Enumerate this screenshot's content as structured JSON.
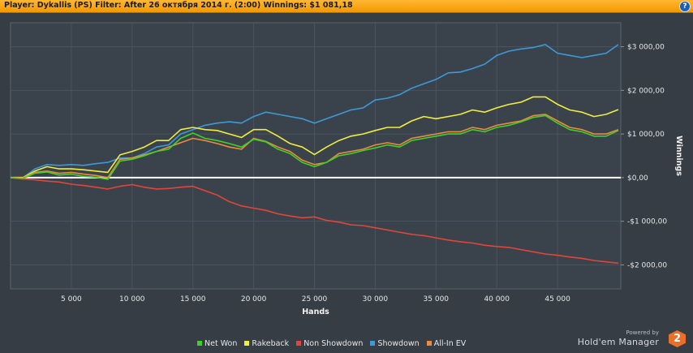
{
  "header": {
    "title": "Player: Dykallis (PS) Filter: After 26 октября 2014 г. (2:00) Winnings: $1 081,18",
    "help_icon": "question-mark-icon"
  },
  "branding": {
    "powered_by": "Powered by",
    "product": "Hold'em Manager",
    "badge": "2"
  },
  "chart_data": {
    "type": "line",
    "title": "",
    "xlabel": "Hands",
    "ylabel": "Winnings",
    "xlim": [
      0,
      50200
    ],
    "ylim": [
      -2550,
      3550
    ],
    "x_ticks": [
      5000,
      10000,
      15000,
      20000,
      25000,
      30000,
      35000,
      40000,
      45000
    ],
    "x_tick_labels": [
      "5 000",
      "10 000",
      "15 000",
      "20 000",
      "25 000",
      "30 000",
      "35 000",
      "40 000",
      "45 000"
    ],
    "y_ticks": [
      3000,
      2000,
      1000,
      0,
      -1000,
      -2000
    ],
    "y_tick_labels": [
      "$3 000,00",
      "$2 000,00",
      "$1 000,00",
      "$0,00",
      "-$1 000,00",
      "-$2 000,00"
    ],
    "y_axis_position": "right",
    "grid": true,
    "legend_position": "bottom",
    "x": [
      0,
      1000,
      2000,
      3000,
      4000,
      5000,
      6000,
      7000,
      8000,
      9000,
      10000,
      11000,
      12000,
      13000,
      14000,
      15000,
      16000,
      17000,
      18000,
      19000,
      20000,
      21000,
      22000,
      23000,
      24000,
      25000,
      26000,
      27000,
      28000,
      29000,
      30000,
      31000,
      32000,
      33000,
      34000,
      35000,
      36000,
      37000,
      38000,
      39000,
      40000,
      41000,
      42000,
      43000,
      44000,
      45000,
      46000,
      47000,
      48000,
      49000,
      50000
    ],
    "series": [
      {
        "name": "Net Won",
        "color": "#3ed12b",
        "values": [
          0,
          -20,
          100,
          130,
          60,
          80,
          30,
          10,
          -40,
          380,
          420,
          500,
          600,
          650,
          900,
          1020,
          900,
          850,
          780,
          700,
          880,
          820,
          650,
          550,
          350,
          250,
          350,
          500,
          550,
          620,
          680,
          750,
          700,
          850,
          900,
          950,
          1000,
          1000,
          1100,
          1050,
          1150,
          1200,
          1280,
          1380,
          1420,
          1250,
          1100,
          1050,
          950,
          950,
          1081
        ]
      },
      {
        "name": "Rakeback",
        "color": "#f1ee3d",
        "values": [
          0,
          0,
          150,
          250,
          200,
          200,
          180,
          150,
          120,
          520,
          600,
          700,
          850,
          850,
          1100,
          1150,
          1100,
          1080,
          1000,
          920,
          1100,
          1100,
          950,
          780,
          700,
          530,
          700,
          850,
          950,
          1000,
          1080,
          1150,
          1150,
          1300,
          1400,
          1350,
          1400,
          1450,
          1550,
          1500,
          1600,
          1680,
          1730,
          1850,
          1850,
          1680,
          1550,
          1500,
          1400,
          1450,
          1560
        ]
      },
      {
        "name": "Non Showdown",
        "color": "#e0463a",
        "values": [
          0,
          -30,
          -50,
          -80,
          -100,
          -150,
          -180,
          -220,
          -260,
          -200,
          -160,
          -220,
          -260,
          -250,
          -220,
          -200,
          -300,
          -400,
          -550,
          -650,
          -700,
          -750,
          -830,
          -880,
          -920,
          -900,
          -980,
          -1020,
          -1080,
          -1100,
          -1150,
          -1200,
          -1250,
          -1300,
          -1330,
          -1380,
          -1430,
          -1470,
          -1500,
          -1550,
          -1580,
          -1600,
          -1650,
          -1700,
          -1750,
          -1780,
          -1820,
          -1850,
          -1900,
          -1930,
          -1960
        ]
      },
      {
        "name": "Showdown",
        "color": "#3c9ad8",
        "values": [
          0,
          -10,
          200,
          300,
          280,
          300,
          280,
          320,
          350,
          450,
          450,
          550,
          700,
          750,
          1000,
          1100,
          1200,
          1250,
          1280,
          1250,
          1400,
          1500,
          1450,
          1400,
          1350,
          1250,
          1350,
          1450,
          1550,
          1600,
          1780,
          1820,
          1900,
          2050,
          2150,
          2250,
          2400,
          2420,
          2500,
          2600,
          2800,
          2900,
          2950,
          2980,
          3050,
          2850,
          2800,
          2750,
          2800,
          2850,
          3050
        ]
      },
      {
        "name": "All-In EV",
        "color": "#ec8b3c",
        "values": [
          0,
          -10,
          120,
          150,
          100,
          120,
          80,
          50,
          0,
          420,
          450,
          520,
          600,
          700,
          800,
          900,
          850,
          780,
          700,
          650,
          900,
          830,
          700,
          600,
          400,
          300,
          350,
          550,
          600,
          650,
          750,
          800,
          750,
          900,
          950,
          1000,
          1050,
          1050,
          1150,
          1100,
          1200,
          1250,
          1300,
          1420,
          1450,
          1300,
          1150,
          1100,
          1000,
          1000,
          1100
        ]
      }
    ]
  }
}
